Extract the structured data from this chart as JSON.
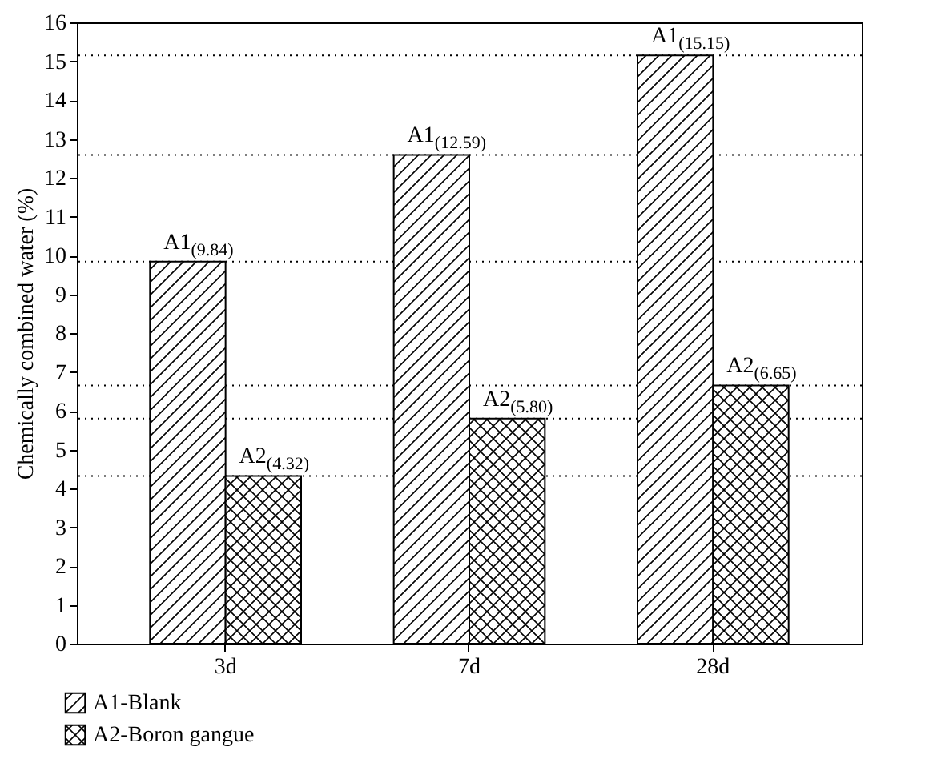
{
  "chart_data": {
    "type": "bar",
    "ylabel": "Chemically combined water (%)",
    "categories": [
      "3d",
      "7d",
      "28d"
    ],
    "ylim": [
      0,
      16
    ],
    "yticks": [
      0,
      1,
      2,
      3,
      4,
      5,
      6,
      7,
      8,
      9,
      10,
      11,
      12,
      13,
      14,
      15,
      16
    ],
    "series": [
      {
        "name": "A1-Blank",
        "color": "#000000",
        "values": [
          9.84,
          12.59,
          15.15
        ],
        "value_labels": [
          "A1$_{(9.84)}$",
          "A1$_{(12.59)}$",
          "A1$_{(15.15)}$"
        ]
      },
      {
        "name": "A2-Boron gangue",
        "color": "#000000",
        "values": [
          4.32,
          5.8,
          6.65
        ],
        "value_labels": [
          "A2$_{(4.32)}$",
          "A2$_{(5.80)}$",
          "A2$_{(6.65)}$"
        ]
      }
    ],
    "ref_lines": [
      {
        "axis": "y",
        "value": 9.84,
        "color": "#000000",
        "line_style": "dotted"
      },
      {
        "axis": "y",
        "value": 12.59,
        "color": "#000000",
        "line_style": "dotted"
      },
      {
        "axis": "y",
        "value": 15.15,
        "color": "#000000",
        "line_style": "dotted"
      },
      {
        "axis": "y",
        "value": 4.32,
        "color": "#000000",
        "line_style": "dotted"
      },
      {
        "axis": "y",
        "value": 5.8,
        "color": "#000000",
        "line_style": "dotted"
      },
      {
        "axis": "y",
        "value": 6.65,
        "color": "#000000",
        "line_style": "dotted"
      }
    ],
    "legend": "bottom left",
    "grid": false
  }
}
